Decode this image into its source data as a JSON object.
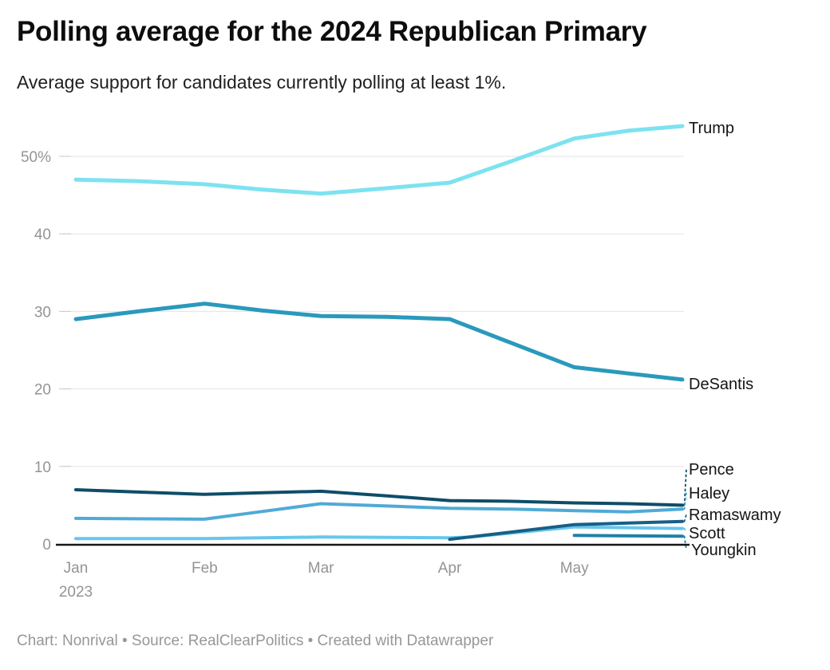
{
  "page": {
    "title": "Polling average for the 2024 Republican Primary",
    "subtitle": "Average support for candidates currently polling at least 1%.",
    "footer": "Chart: Nonrival • Source: RealClearPolitics • Created with Datawrapper"
  },
  "chart_data": {
    "type": "line",
    "title": "Polling average for the 2024 Republican Primary",
    "subtitle": "Average support for candidates currently polling at least 1%.",
    "grid": "horizontal",
    "legend_position": "end-of-line-labels-right",
    "x_axis": {
      "unit": "date (days from first point, Jan–May 2023)",
      "domain": [
        0,
        146
      ],
      "ticks": [
        {
          "x": 0,
          "label": "Jan",
          "sublabel": "2023"
        },
        {
          "x": 31,
          "label": "Feb",
          "sublabel": ""
        },
        {
          "x": 59,
          "label": "Mar",
          "sublabel": ""
        },
        {
          "x": 90,
          "label": "Apr",
          "sublabel": ""
        },
        {
          "x": 120,
          "label": "May",
          "sublabel": ""
        }
      ]
    },
    "y_axis": {
      "unit": "percent support",
      "domain": [
        0,
        55
      ],
      "ticks": [
        {
          "v": 0,
          "label": "0"
        },
        {
          "v": 10,
          "label": "10"
        },
        {
          "v": 20,
          "label": "20"
        },
        {
          "v": 30,
          "label": "30"
        },
        {
          "v": 40,
          "label": "40"
        },
        {
          "v": 50,
          "label": "50%"
        }
      ]
    },
    "series": [
      {
        "name": "Trump",
        "color": "#7de2f0",
        "points": [
          [
            0,
            47.0
          ],
          [
            15,
            46.8
          ],
          [
            31,
            46.4
          ],
          [
            45,
            45.7
          ],
          [
            59,
            45.2
          ],
          [
            75,
            45.9
          ],
          [
            90,
            46.6
          ],
          [
            105,
            49.4
          ],
          [
            120,
            52.3
          ],
          [
            133,
            53.3
          ],
          [
            146,
            53.9
          ]
        ]
      },
      {
        "name": "DeSantis",
        "color": "#2a99bc",
        "points": [
          [
            0,
            29.0
          ],
          [
            15,
            30.0
          ],
          [
            31,
            31.0
          ],
          [
            45,
            30.1
          ],
          [
            59,
            29.4
          ],
          [
            75,
            29.3
          ],
          [
            90,
            29.0
          ],
          [
            105,
            25.9
          ],
          [
            120,
            22.8
          ],
          [
            133,
            22.0
          ],
          [
            146,
            21.2
          ]
        ]
      },
      {
        "name": "Pence",
        "color": "#0e4d68",
        "points": [
          [
            0,
            7.0
          ],
          [
            15,
            6.7
          ],
          [
            31,
            6.4
          ],
          [
            45,
            6.6
          ],
          [
            59,
            6.8
          ],
          [
            75,
            6.2
          ],
          [
            90,
            5.6
          ],
          [
            105,
            5.5
          ],
          [
            120,
            5.3
          ],
          [
            133,
            5.2
          ],
          [
            146,
            5.0
          ]
        ]
      },
      {
        "name": "Haley",
        "color": "#4faad6",
        "points": [
          [
            0,
            3.3
          ],
          [
            31,
            3.2
          ],
          [
            45,
            4.2
          ],
          [
            59,
            5.2
          ],
          [
            75,
            4.9
          ],
          [
            90,
            4.6
          ],
          [
            105,
            4.5
          ],
          [
            120,
            4.3
          ],
          [
            133,
            4.15
          ],
          [
            146,
            4.5
          ]
        ]
      },
      {
        "name": "Ramaswamy",
        "color": "#175f87",
        "points": [
          [
            90,
            0.6
          ],
          [
            120,
            2.5
          ],
          [
            133,
            2.7
          ],
          [
            146,
            2.9
          ]
        ]
      },
      {
        "name": "Scott",
        "color": "#68c6ec",
        "points": [
          [
            0,
            0.7
          ],
          [
            31,
            0.7
          ],
          [
            59,
            0.9
          ],
          [
            90,
            0.8
          ],
          [
            95,
            0.9
          ],
          [
            120,
            2.2
          ],
          [
            133,
            2.1
          ],
          [
            146,
            2.0
          ]
        ]
      },
      {
        "name": "Youngkin",
        "color": "#1f81a8",
        "points": [
          [
            120,
            1.1
          ],
          [
            146,
            1.0
          ]
        ]
      }
    ]
  }
}
